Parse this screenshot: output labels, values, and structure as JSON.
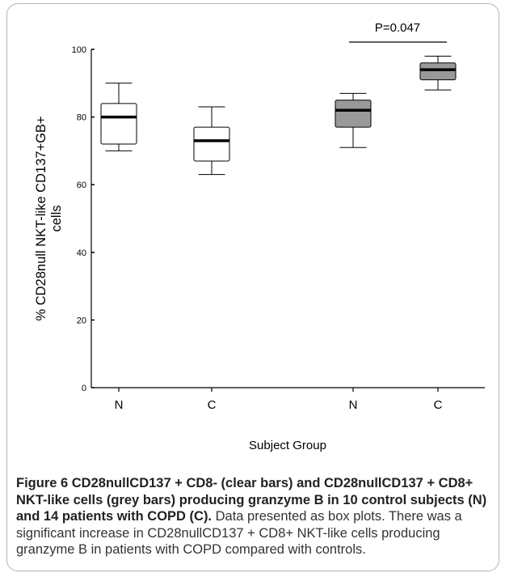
{
  "chart_data": {
    "type": "boxplot",
    "ylabel": "% CD28null NKT-like CD137+GB+ cells",
    "xlabel": "Subject Group",
    "ylim": [
      0,
      100
    ],
    "yticks": [
      0,
      20,
      40,
      60,
      80,
      100
    ],
    "categories": [
      "N",
      "C",
      "N",
      "C"
    ],
    "boxes": [
      {
        "category": "N",
        "fill": "clear",
        "min": 70,
        "q1": 72,
        "median": 80,
        "q3": 84,
        "max": 90
      },
      {
        "category": "C",
        "fill": "clear",
        "min": 63,
        "q1": 67,
        "median": 73,
        "q3": 77,
        "max": 83
      },
      {
        "category": "N",
        "fill": "grey",
        "min": 71,
        "q1": 77,
        "median": 82,
        "q3": 85,
        "max": 87
      },
      {
        "category": "C",
        "fill": "grey",
        "min": 88,
        "q1": 91,
        "median": 94,
        "q3": 96,
        "max": 98
      }
    ],
    "annotation": {
      "text": "P=0.047",
      "from_box": 2,
      "to_box": 3
    },
    "colors": {
      "clear": "#ffffff",
      "grey": "#999999",
      "stroke": "#000000"
    }
  },
  "caption": {
    "bold": "Figure 6 CD28nullCD137 + CD8- (clear bars) and CD28nullCD137 + CD8+ NKT-like cells (grey bars) producing granzyme B in 10 control subjects (N) and 14 patients with COPD (C).",
    "text": " Data presented as box plots. There was a significant increase in CD28nullCD137 + CD8+ NKT-like cells producing granzyme B in patients with COPD compared with controls."
  }
}
